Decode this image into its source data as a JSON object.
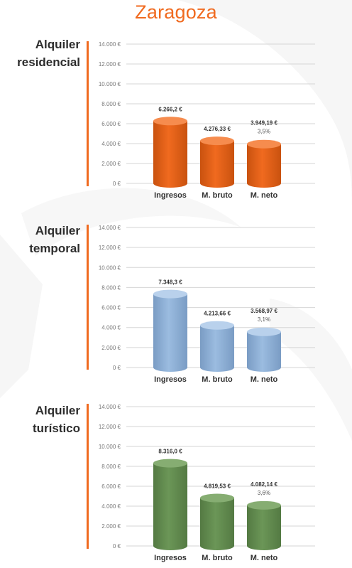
{
  "page": {
    "title": "Zaragoza"
  },
  "chart_data": [
    {
      "type": "bar",
      "title": "Alquiler residencial",
      "title_lines": [
        "Alquiler",
        "residencial"
      ],
      "color": "#f06a1f",
      "color_dark": "#c9520f",
      "color_top": "#f68c4e",
      "categories": [
        "Ingresos",
        "M. bruto",
        "M. neto"
      ],
      "values": [
        6266.2,
        4276.33,
        3949.19
      ],
      "value_labels": [
        "6.266,2 €",
        "4.276,33 €",
        "3.949,19 €"
      ],
      "percent_labels": [
        "",
        "",
        "3,5%"
      ],
      "ylim": [
        0,
        14000
      ],
      "yticks": [
        0,
        2000,
        4000,
        6000,
        8000,
        10000,
        12000,
        14000
      ],
      "ytick_labels": [
        "0 €",
        "2.000 €",
        "4.000 €",
        "6.000 €",
        "8.000 €",
        "10.000 €",
        "12.000 €",
        "14.000 €"
      ],
      "grid": true
    },
    {
      "type": "bar",
      "title": "Alquiler temporal",
      "title_lines": [
        "Alquiler",
        "temporal"
      ],
      "color": "#9bbce0",
      "color_dark": "#7a9cc4",
      "color_top": "#b9d1ec",
      "categories": [
        "Ingresos",
        "M. bruto",
        "M. neto"
      ],
      "values": [
        7348.3,
        4213.66,
        3568.97
      ],
      "value_labels": [
        "7.348,3 €",
        "4.213,66 €",
        "3.568,97 €"
      ],
      "percent_labels": [
        "",
        "",
        "3,1%"
      ],
      "ylim": [
        0,
        14000
      ],
      "yticks": [
        0,
        2000,
        4000,
        6000,
        8000,
        10000,
        12000,
        14000
      ],
      "ytick_labels": [
        "0 €",
        "2.000 €",
        "4.000 €",
        "6.000 €",
        "8.000 €",
        "10.000 €",
        "12.000 €",
        "14.000 €"
      ],
      "grid": true
    },
    {
      "type": "bar",
      "title": "Alquiler turístico",
      "title_lines": [
        "Alquiler",
        "turístico"
      ],
      "color": "#6b9657",
      "color_dark": "#547a43",
      "color_top": "#86ad72",
      "categories": [
        "Ingresos",
        "M. bruto",
        "M. neto"
      ],
      "values": [
        8316.0,
        4819.53,
        4082.14
      ],
      "value_labels": [
        "8.316,0 €",
        "4.819,53 €",
        "4.082,14 €"
      ],
      "percent_labels": [
        "",
        "",
        "3,6%"
      ],
      "ylim": [
        0,
        14000
      ],
      "yticks": [
        0,
        2000,
        4000,
        6000,
        8000,
        10000,
        12000,
        14000
      ],
      "ytick_labels": [
        "0 €",
        "2.000 €",
        "4.000 €",
        "6.000 €",
        "8.000 €",
        "10.000 €",
        "12.000 €",
        "14.000 €"
      ],
      "grid": true
    }
  ]
}
